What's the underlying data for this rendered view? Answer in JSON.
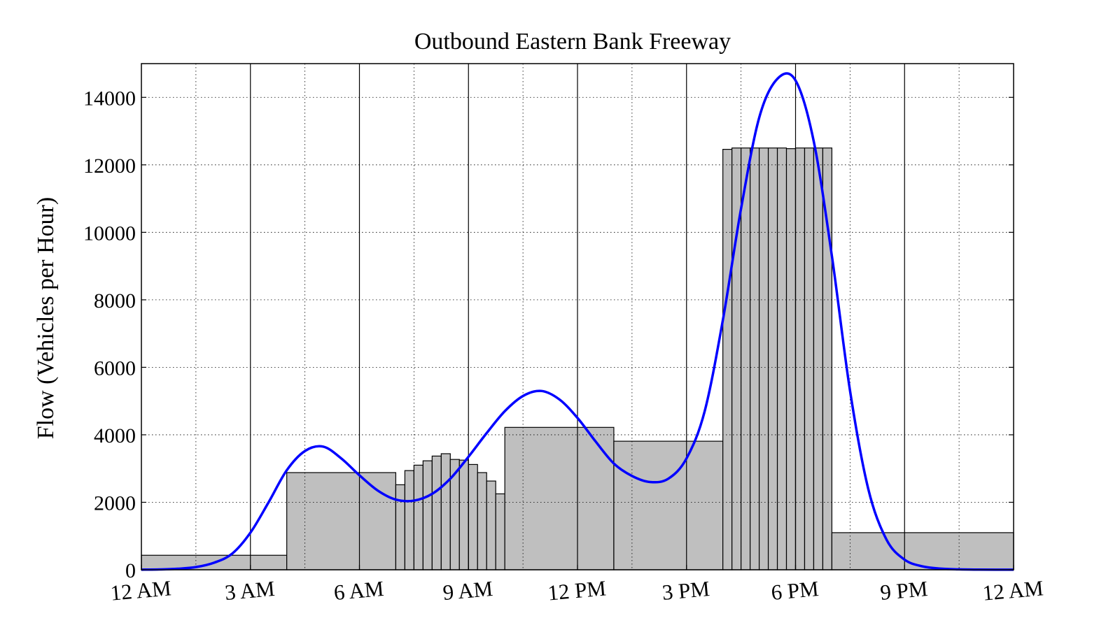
{
  "chart_data": {
    "type": "bar",
    "title": "Outbound Eastern Bank Freeway",
    "xlabel": "",
    "ylabel": "Flow (Vehicles per Hour)",
    "x_unit": "hours since 12 AM",
    "xlim": [
      0,
      24
    ],
    "ylim": [
      0,
      15000
    ],
    "grid": true,
    "x_ticks": [
      {
        "value": 0,
        "label": "12 AM"
      },
      {
        "value": 3,
        "label": "3 AM"
      },
      {
        "value": 6,
        "label": "6 AM"
      },
      {
        "value": 9,
        "label": "9 AM"
      },
      {
        "value": 12,
        "label": "12 PM"
      },
      {
        "value": 15,
        "label": "3 PM"
      },
      {
        "value": 18,
        "label": "6 PM"
      },
      {
        "value": 21,
        "label": "9 PM"
      },
      {
        "value": 24,
        "label": "12 AM"
      }
    ],
    "y_ticks": [
      0,
      2000,
      4000,
      6000,
      8000,
      10000,
      12000,
      14000
    ],
    "bars": [
      {
        "x0": 0,
        "x1": 4,
        "value": 430
      },
      {
        "x0": 4,
        "x1": 7,
        "value": 2880
      },
      {
        "x0": 7,
        "x1": 7.25,
        "value": 2520
      },
      {
        "x0": 7.25,
        "x1": 7.5,
        "value": 2940
      },
      {
        "x0": 7.5,
        "x1": 7.75,
        "value": 3100
      },
      {
        "x0": 7.75,
        "x1": 8,
        "value": 3230
      },
      {
        "x0": 8,
        "x1": 8.25,
        "value": 3370
      },
      {
        "x0": 8.25,
        "x1": 8.5,
        "value": 3440
      },
      {
        "x0": 8.5,
        "x1": 8.75,
        "value": 3270
      },
      {
        "x0": 8.75,
        "x1": 9,
        "value": 3250
      },
      {
        "x0": 9,
        "x1": 9.25,
        "value": 3120
      },
      {
        "x0": 9.25,
        "x1": 9.5,
        "value": 2880
      },
      {
        "x0": 9.5,
        "x1": 9.75,
        "value": 2630
      },
      {
        "x0": 9.75,
        "x1": 10,
        "value": 2250
      },
      {
        "x0": 10,
        "x1": 13,
        "value": 4220
      },
      {
        "x0": 13,
        "x1": 16,
        "value": 3810
      },
      {
        "x0": 16,
        "x1": 16.25,
        "value": 12460
      },
      {
        "x0": 16.25,
        "x1": 16.5,
        "value": 12500
      },
      {
        "x0": 16.5,
        "x1": 16.75,
        "value": 12500
      },
      {
        "x0": 16.75,
        "x1": 17,
        "value": 12500
      },
      {
        "x0": 17,
        "x1": 17.25,
        "value": 12500
      },
      {
        "x0": 17.25,
        "x1": 17.5,
        "value": 12500
      },
      {
        "x0": 17.5,
        "x1": 17.75,
        "value": 12500
      },
      {
        "x0": 17.75,
        "x1": 18,
        "value": 12480
      },
      {
        "x0": 18,
        "x1": 18.25,
        "value": 12500
      },
      {
        "x0": 18.25,
        "x1": 18.5,
        "value": 12500
      },
      {
        "x0": 18.5,
        "x1": 18.75,
        "value": 12500
      },
      {
        "x0": 18.75,
        "x1": 19,
        "value": 12500
      },
      {
        "x0": 19,
        "x1": 24,
        "value": 1100
      }
    ],
    "curve": {
      "x": [
        0,
        0.5,
        1,
        1.5,
        2,
        2.5,
        3,
        3.5,
        4,
        4.5,
        5,
        5.5,
        6,
        6.5,
        7,
        7.5,
        8,
        8.5,
        9,
        9.5,
        10,
        10.5,
        11,
        11.5,
        12,
        12.5,
        13,
        13.5,
        14,
        14.5,
        15,
        15.5,
        16,
        16.5,
        17,
        17.5,
        18,
        18.5,
        19,
        19.5,
        20,
        20.5,
        21,
        21.5,
        22,
        22.5,
        23,
        23.5,
        24
      ],
      "values": [
        3,
        10,
        30,
        80,
        210,
        480,
        1100,
        2000,
        2950,
        3520,
        3650,
        3300,
        2800,
        2350,
        2080,
        2050,
        2250,
        2700,
        3350,
        4050,
        4700,
        5150,
        5300,
        5050,
        4500,
        3800,
        3150,
        2780,
        2600,
        2700,
        3300,
        4700,
        7400,
        10700,
        13400,
        14550,
        14500,
        12700,
        9300,
        5300,
        2400,
        900,
        300,
        100,
        35,
        12,
        5,
        3,
        2
      ],
      "color": "#0000ff"
    },
    "bar_color": "#bfbfbf"
  }
}
